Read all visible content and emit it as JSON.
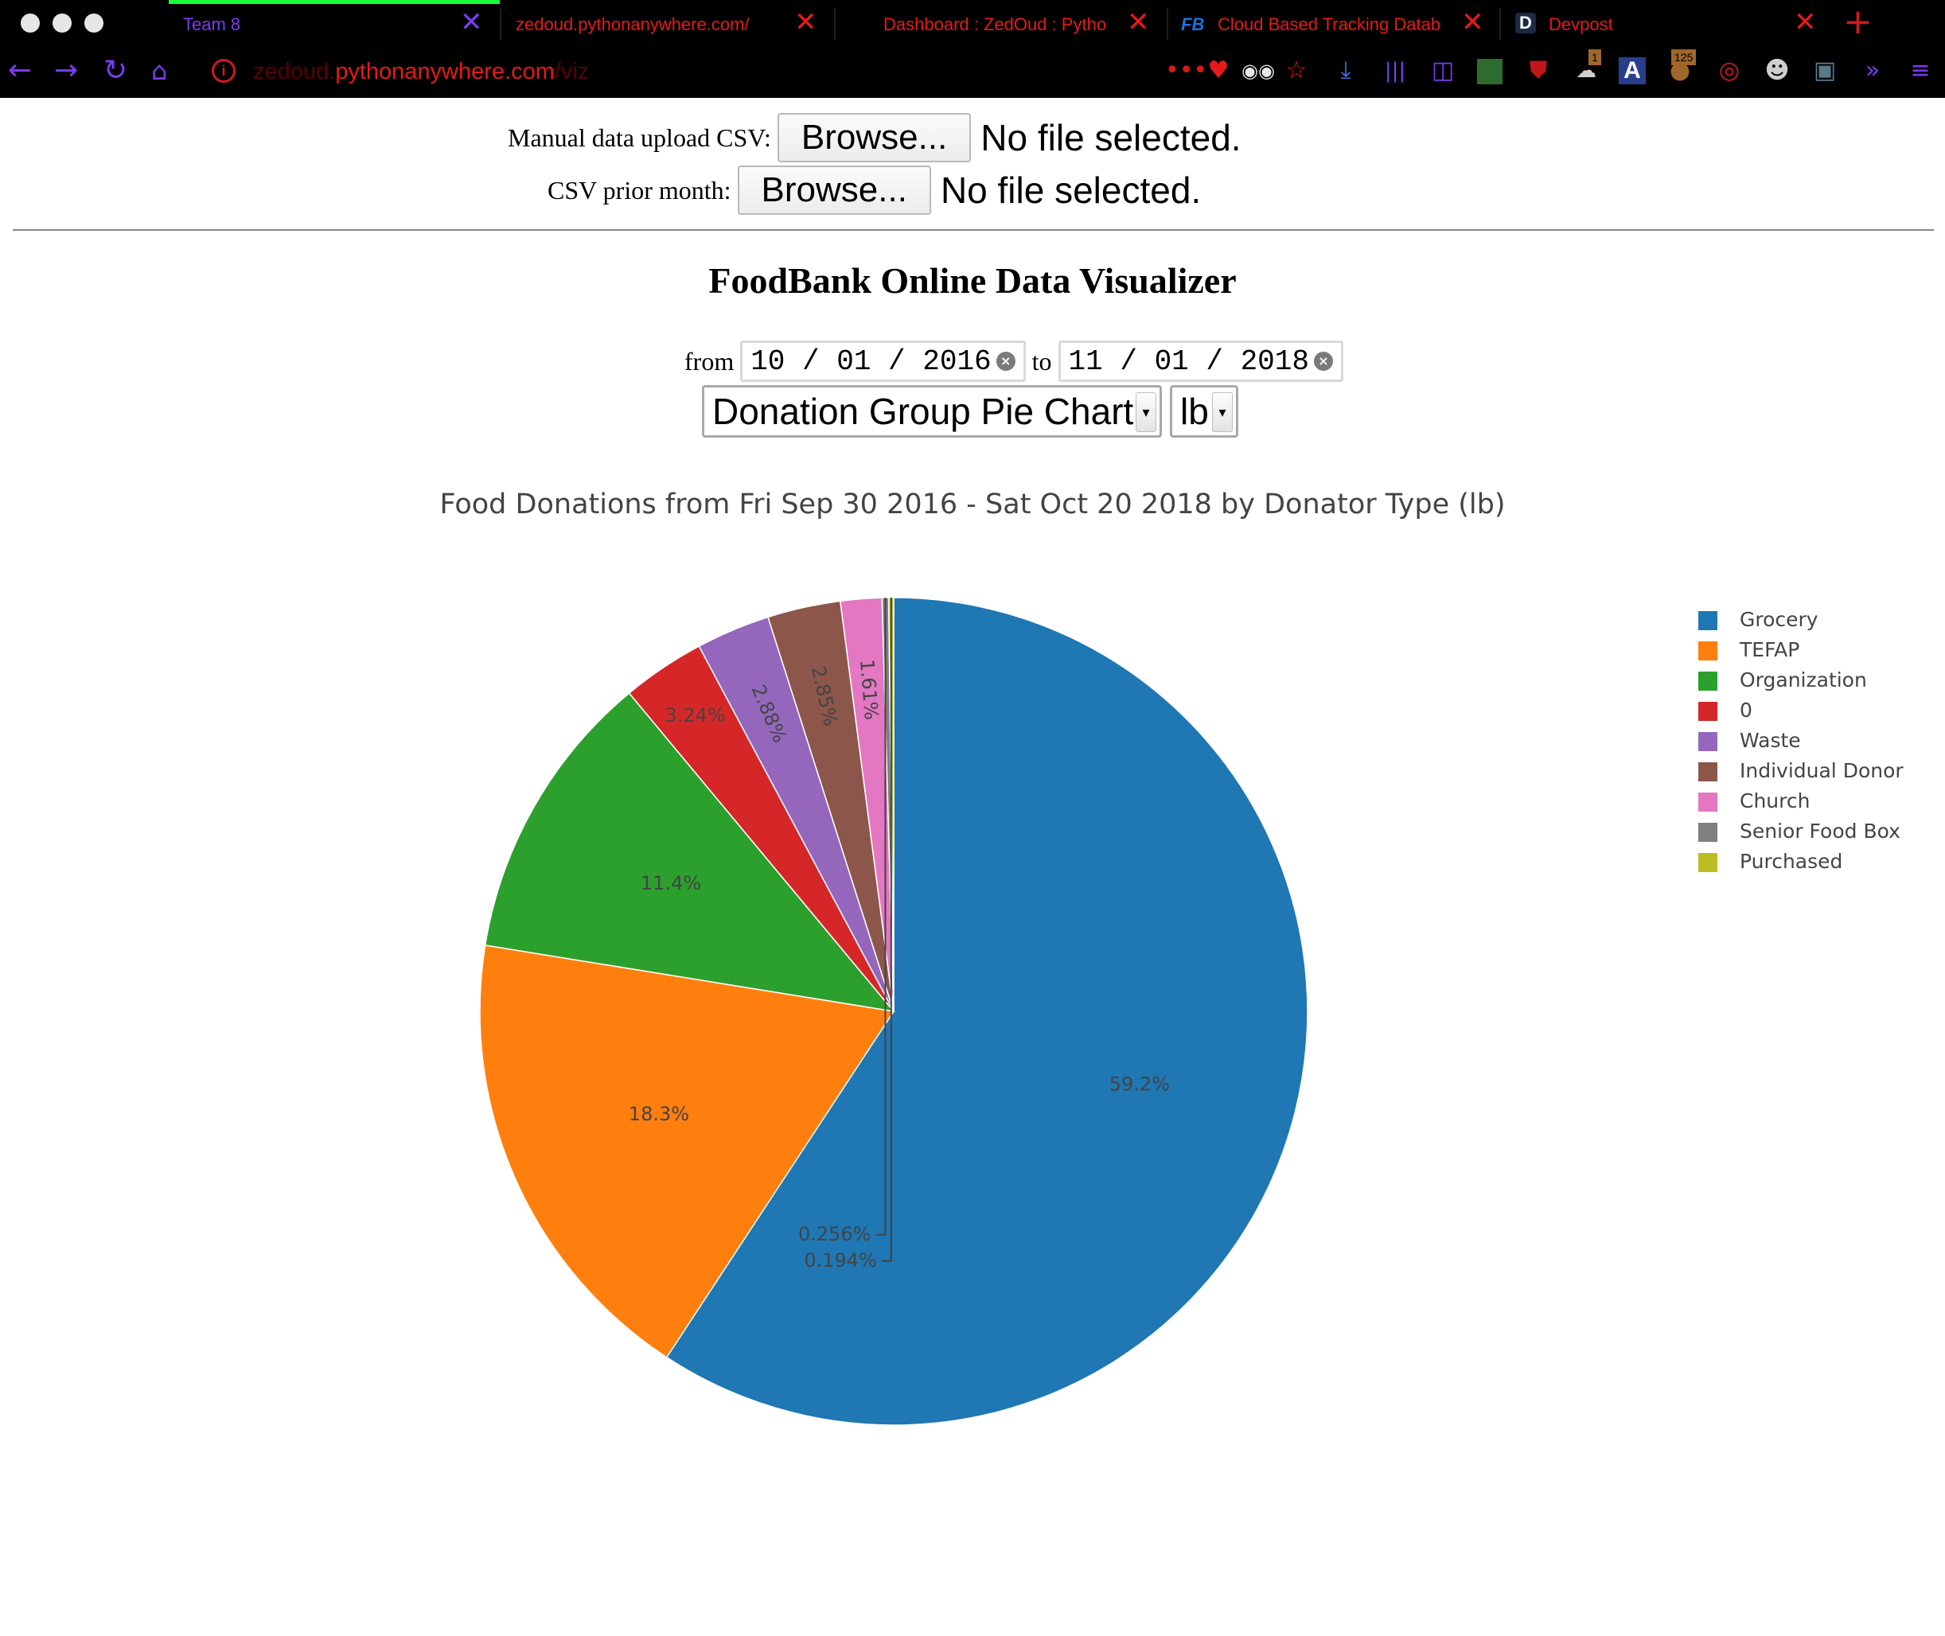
{
  "browser": {
    "tabs": [
      {
        "title": "Team 8",
        "color": "#7a3cf0"
      },
      {
        "title": "zedoud.pythonanywhere.com/",
        "color": "#e61a1a"
      },
      {
        "title": "Dashboard : ZedOud : Pytho",
        "color": "#e61a1a"
      },
      {
        "title": "Cloud Based Tracking Datab",
        "color": "#e61a1a",
        "favicon": "FB"
      },
      {
        "title": "Devpost",
        "color": "#e61a1a",
        "favicon": "D"
      }
    ],
    "url_prefix": "zedoud.",
    "url_domain": "pythonanywhere.com",
    "url_path": "/viz",
    "badges": {
      "extension_one": "1",
      "extension_two": "125"
    }
  },
  "upload": {
    "manual_label": "Manual data upload CSV:",
    "prior_label": "CSV prior month:",
    "browse_label": "Browse...",
    "no_file_text": "No file selected."
  },
  "page": {
    "title": "FoodBank Online Data Visualizer",
    "from_label": "from",
    "to_label": "to",
    "from_date": "10 / 01 / 2016",
    "to_date": "11 / 01 / 2018",
    "chart_select": "Donation Group Pie Chart",
    "unit_select": "lb"
  },
  "chart_data": {
    "type": "pie",
    "title": "Food Donations from Fri Sep 30 2016 - Sat Oct 20 2018 by Donator Type (lb)",
    "legend_position": "top-right",
    "slices": [
      {
        "label": "Grocery",
        "percent": 59.2,
        "display": "59.2%",
        "color": "#1f77b4"
      },
      {
        "label": "TEFAP",
        "percent": 18.3,
        "display": "18.3%",
        "color": "#ff7f0e"
      },
      {
        "label": "Organization",
        "percent": 11.4,
        "display": "11.4%",
        "color": "#2ca02c"
      },
      {
        "label": "0",
        "percent": 3.24,
        "display": "3.24%",
        "color": "#d62728"
      },
      {
        "label": "Waste",
        "percent": 2.88,
        "display": "2.88%",
        "color": "#9467bd"
      },
      {
        "label": "Individual Donor",
        "percent": 2.85,
        "display": "2.85%",
        "color": "#8c564b"
      },
      {
        "label": "Church",
        "percent": 1.61,
        "display": "1.61%",
        "color": "#e377c2"
      },
      {
        "label": "Senior Food Box",
        "percent": 0.256,
        "display": "0.256%",
        "color": "#7f7f7f"
      },
      {
        "label": "Purchased",
        "percent": 0.194,
        "display": "0.194%",
        "color": "#bcbd22"
      }
    ]
  }
}
